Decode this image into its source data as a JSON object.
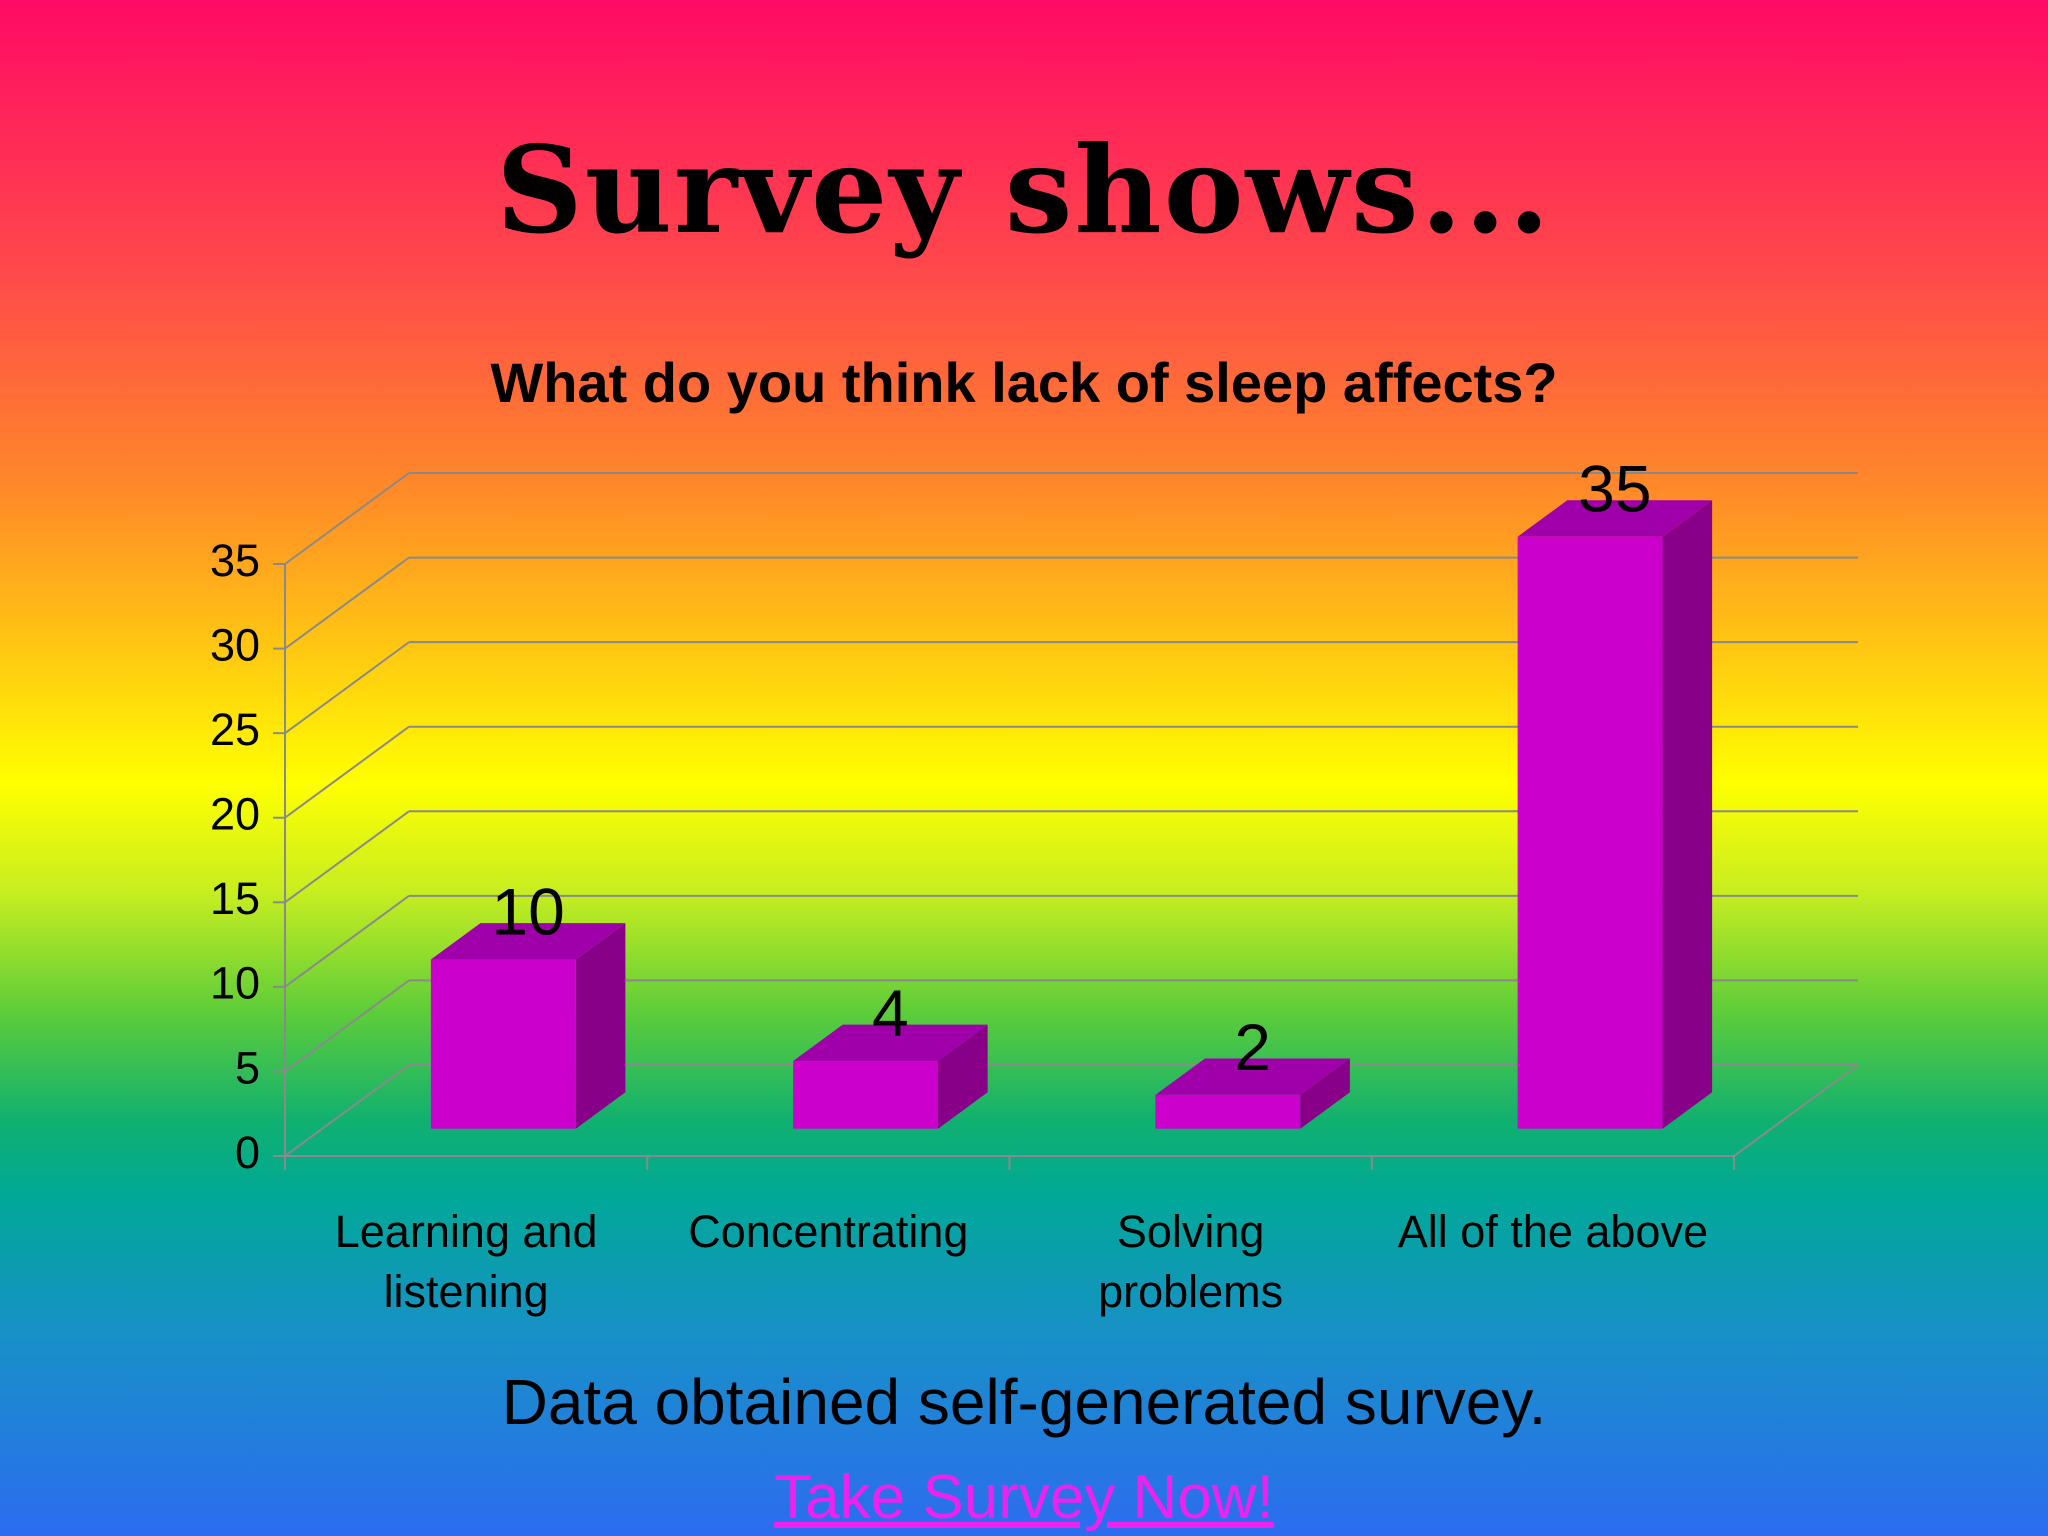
{
  "header": {
    "title": "Survey shows..."
  },
  "chart_data": {
    "type": "bar3d",
    "title": "What do you think lack of sleep affects?",
    "categories": [
      "Learning and listening",
      "Concentrating",
      "Solving problems",
      "All of the above"
    ],
    "values": [
      10,
      4,
      2,
      35
    ],
    "color": "#cc00cc",
    "ylim": [
      0,
      35
    ],
    "yticks": [
      0,
      5,
      10,
      15,
      20,
      25,
      30,
      35
    ],
    "grid": true
  },
  "footer": {
    "note": "Data obtained self-generated survey.",
    "link": "Take Survey Now!"
  }
}
